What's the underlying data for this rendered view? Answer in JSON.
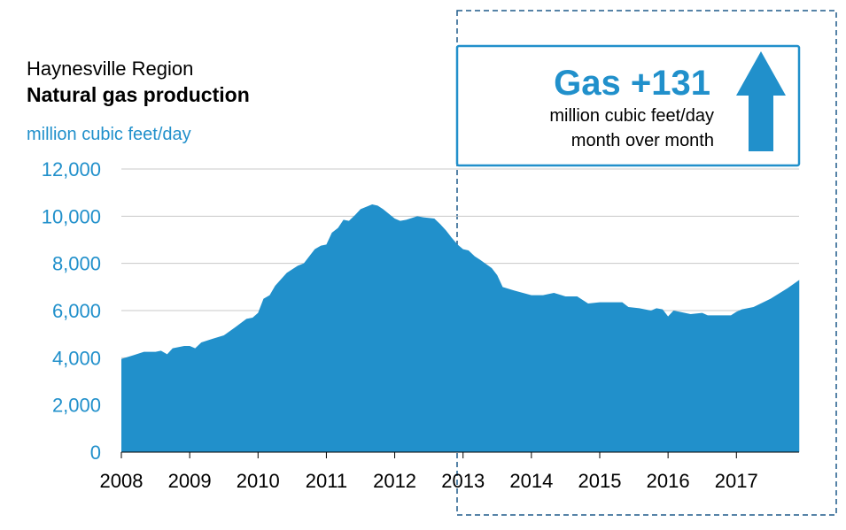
{
  "chart_data": {
    "type": "area",
    "title": "Natural gas production",
    "supertitle": "Haynesville Region",
    "ylabel": "million cubic feet/day",
    "ylim": [
      0,
      12000
    ],
    "yticks": [
      0,
      2000,
      4000,
      6000,
      8000,
      10000,
      12000
    ],
    "ytick_labels": [
      "0",
      "2,000",
      "4,000",
      "6,000",
      "8,000",
      "10,000",
      "12,000"
    ],
    "xlim": [
      2008,
      2017.9167
    ],
    "xticks": [
      2008,
      2009,
      2010,
      2011,
      2012,
      2013,
      2014,
      2015,
      2016,
      2017
    ],
    "xtick_labels": [
      "2008",
      "2009",
      "2010",
      "2011",
      "2012",
      "2013",
      "2014",
      "2015",
      "2016",
      "2017"
    ],
    "grid": true,
    "fill_color": "#2190cb",
    "grid_color": "#c8c8c8",
    "axis_text_color": "#2190cb",
    "series": [
      {
        "x": [
          2008.0,
          2008.17,
          2008.33,
          2008.5,
          2008.58,
          2008.67,
          2008.75,
          2008.92,
          2009.0,
          2009.08,
          2009.17,
          2009.33,
          2009.5,
          2009.67,
          2009.83,
          2009.92,
          2010.0,
          2010.08,
          2010.17,
          2010.25,
          2010.42,
          2010.58,
          2010.67,
          2010.83,
          2010.92,
          2011.0,
          2011.08,
          2011.17,
          2011.25,
          2011.33,
          2011.42,
          2011.5,
          2011.67,
          2011.75,
          2011.83,
          2012.0,
          2012.08,
          2012.17,
          2012.33,
          2012.42,
          2012.58,
          2012.67,
          2012.75,
          2012.83,
          2012.92,
          2013.0,
          2013.08,
          2013.17,
          2013.25,
          2013.42,
          2013.5,
          2013.58,
          2013.75,
          2014.0,
          2014.17,
          2014.33,
          2014.5,
          2014.67,
          2014.83,
          2015.0,
          2015.17,
          2015.33,
          2015.42,
          2015.58,
          2015.75,
          2015.83,
          2015.92,
          2016.0,
          2016.08,
          2016.17,
          2016.33,
          2016.5,
          2016.58,
          2016.75,
          2016.92,
          2017.0,
          2017.08,
          2017.25,
          2017.5,
          2017.75,
          2017.92
        ],
        "values": [
          3950,
          4100,
          4250,
          4250,
          4300,
          4150,
          4400,
          4500,
          4500,
          4400,
          4650,
          4800,
          4950,
          5300,
          5650,
          5700,
          5900,
          6500,
          6650,
          7050,
          7600,
          7900,
          8000,
          8600,
          8750,
          8800,
          9300,
          9500,
          9850,
          9800,
          10050,
          10300,
          10500,
          10450,
          10300,
          9900,
          9800,
          9850,
          10000,
          9950,
          9900,
          9650,
          9400,
          9100,
          8800,
          8600,
          8550,
          8300,
          8150,
          7800,
          7500,
          7000,
          6850,
          6650,
          6650,
          6750,
          6600,
          6600,
          6300,
          6350,
          6350,
          6350,
          6150,
          6100,
          6000,
          6100,
          6050,
          5750,
          6000,
          5950,
          5850,
          5900,
          5800,
          5800,
          5800,
          5950,
          6050,
          6150,
          6500,
          6950,
          7300
        ]
      }
    ]
  },
  "callout": {
    "headline": "Gas +131",
    "line1": "million cubic feet/day",
    "line2": "month over month",
    "direction": "up",
    "border_color": "#2190cb",
    "arrow_color": "#2190cb"
  }
}
